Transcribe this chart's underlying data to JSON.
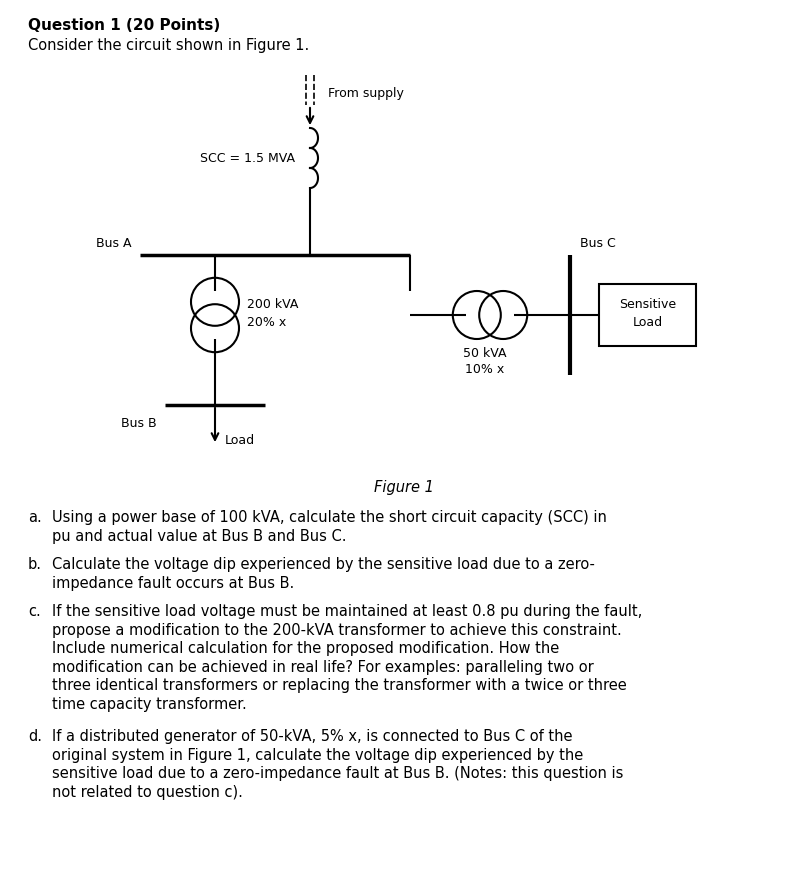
{
  "title": "Question 1 (20 Points)",
  "subtitle": "Consider the circuit shown in Figure 1.",
  "figure_caption": "Figure 1",
  "background_color": "#ffffff",
  "scc_label": "SCC = 1.5 MVA",
  "from_supply": "From supply",
  "bus_a": "Bus A",
  "bus_b": "Bus B",
  "bus_c": "Bus C",
  "tr1_label1": "200 kVA",
  "tr1_label2": "20% x",
  "tr2_label1": "50 kVA",
  "tr2_label2": "10% x",
  "load_label": "Load",
  "sensitive_load_line1": "Sensitive",
  "sensitive_load_line2": "Load",
  "q_a_label": "a.",
  "q_a_text": "Using a power base of 100 kVA, calculate the short circuit capacity (SCC) in\npu and actual value at Bus B and Bus C.",
  "q_b_label": "b.",
  "q_b_text": "Calculate the voltage dip experienced by the sensitive load due to a zero-\nimpedance fault occurs at Bus B.",
  "q_c_label": "c.",
  "q_c_text": "If the sensitive load voltage must be maintained at least 0.8 pu during the fault,\npropose a modification to the 200-kVA transformer to achieve this constraint.\nInclude numerical calculation for the proposed modification. How the\nmodification can be achieved in real life? For examples: paralleling two or\nthree identical transformers or replacing the transformer with a twice or three\ntime capacity transformer.",
  "q_d_label": "d.",
  "q_d_text": "If a distributed generator of 50-kVA, 5% x, is connected to Bus C of the\noriginal system in Figure 1, calculate the voltage dip experienced by the\nsensitive load due to a zero-impedance fault at Bus B. (Notes: this question is\nnot related to question c)."
}
